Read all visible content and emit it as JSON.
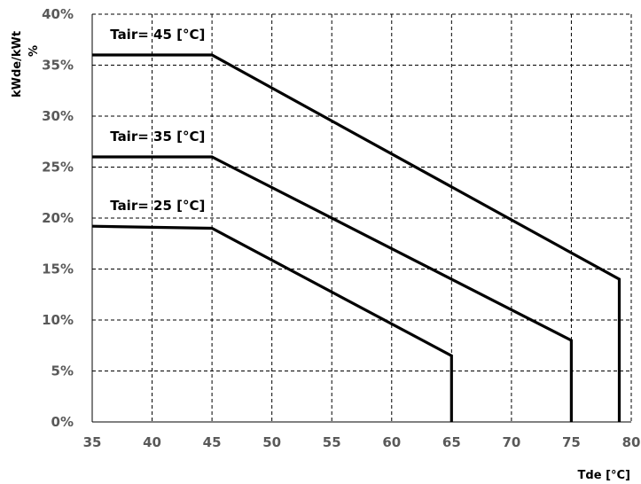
{
  "chart_data": {
    "type": "line",
    "title": "",
    "xlabel": "Tde [°C]",
    "ylabel": "kWde/kWt",
    "ylabel_unit": "%",
    "xlim": [
      35,
      80
    ],
    "ylim": [
      0,
      40
    ],
    "x_ticks": [
      "35",
      "40",
      "45",
      "50",
      "55",
      "60",
      "65",
      "70",
      "75",
      "80"
    ],
    "y_ticks": [
      "0%",
      "5%",
      "10%",
      "15%",
      "20%",
      "25%",
      "30%",
      "35%",
      "40%"
    ],
    "grid": true,
    "grid_style": "dashed",
    "line_color": "#000000",
    "series": [
      {
        "name": "Tair= 45 [°C]",
        "x": [
          35,
          45,
          79,
          79
        ],
        "y": [
          36,
          36,
          14,
          0
        ]
      },
      {
        "name": "Tair= 35 [°C]",
        "x": [
          35,
          45,
          75,
          75
        ],
        "y": [
          26,
          26,
          8,
          0
        ]
      },
      {
        "name": "Tair= 25 [°C]",
        "x": [
          35,
          45,
          65,
          65
        ],
        "y": [
          19.2,
          19,
          6.5,
          0
        ]
      }
    ]
  }
}
